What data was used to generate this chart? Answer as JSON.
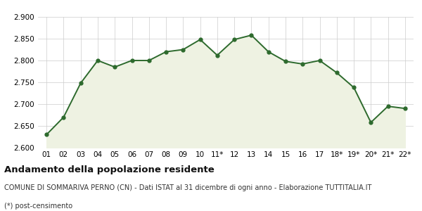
{
  "x_labels": [
    "01",
    "02",
    "03",
    "04",
    "05",
    "06",
    "07",
    "08",
    "09",
    "10",
    "11*",
    "12",
    "13",
    "14",
    "15",
    "16",
    "17",
    "18*",
    "19*",
    "20*",
    "21*",
    "22*"
  ],
  "y_values": [
    2630,
    2670,
    2748,
    2800,
    2785,
    2800,
    2800,
    2820,
    2825,
    2848,
    2812,
    2848,
    2858,
    2820,
    2798,
    2792,
    2800,
    2772,
    2738,
    2658,
    2695,
    2690
  ],
  "ylim": [
    2600,
    2900
  ],
  "yticks": [
    2600,
    2650,
    2700,
    2750,
    2800,
    2850,
    2900
  ],
  "line_color": "#2d6a2d",
  "fill_color": "#eef2e2",
  "marker_size": 3.5,
  "line_width": 1.4,
  "title": "Andamento della popolazione residente",
  "subtitle": "COMUNE DI SOMMARIVA PERNO (CN) - Dati ISTAT al 31 dicembre di ogni anno - Elaborazione TUTTITALIA.IT",
  "footnote": "(*) post-censimento",
  "bg_color": "#ffffff",
  "grid_color": "#cccccc",
  "title_fontsize": 9.5,
  "subtitle_fontsize": 7.0,
  "footnote_fontsize": 7.0,
  "tick_fontsize": 7.5
}
